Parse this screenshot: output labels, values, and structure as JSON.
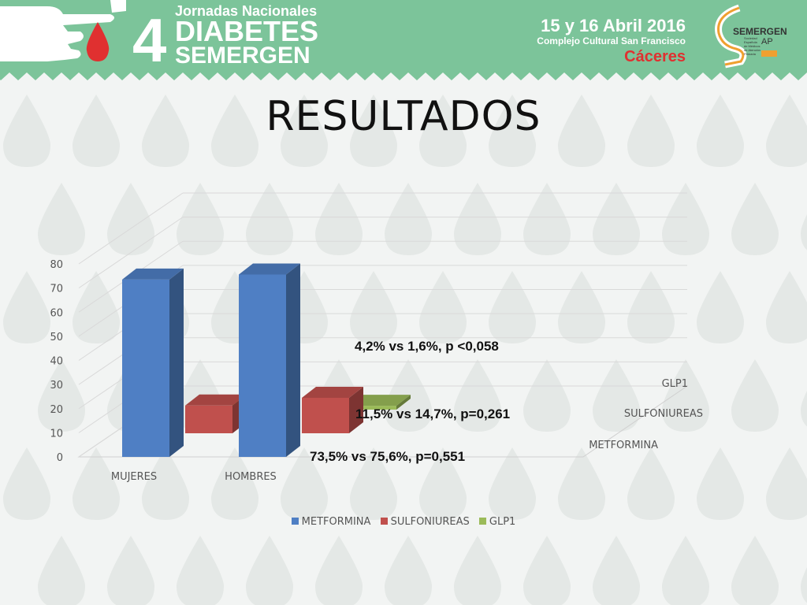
{
  "header": {
    "event_number": "4",
    "event_line1": "Jornadas Nacionales",
    "event_line2": "DIABETES",
    "event_line3": "SEMERGEN",
    "dates": "15 y 16 Abril 2016",
    "venue": "Complejo Cultural San Francisco",
    "city": "Cáceres",
    "logo_text": "SEMERGEN",
    "logo_sub": "AP",
    "logo_small": [
      "Sociedad",
      "Española",
      "de Médicos",
      "de Atención",
      "Primaria"
    ]
  },
  "slide": {
    "title": "RESULTADOS"
  },
  "annotations": {
    "glp1": "4,2% vs 1,6%, p <0,058",
    "sulfonilureas": "11,5% vs 14,7%, p=0,261",
    "metformina": "73,5% vs 75,6%, p=0,551"
  },
  "colors": {
    "banner": "#7cc49a",
    "drop": "#e4e8e6",
    "metformina": "#4f7fc4",
    "sulfoniureas": "#c0504d",
    "glp1": "#9bbb59"
  },
  "chart_data": {
    "type": "bar",
    "categories": [
      "MUJERES",
      "HOMBRES"
    ],
    "series": [
      {
        "name": "METFORMINA",
        "values": [
          73.5,
          75.6
        ]
      },
      {
        "name": "SULFONIUREAS",
        "values": [
          11.5,
          14.7
        ]
      },
      {
        "name": "GLP1",
        "values": [
          4.2,
          1.6
        ]
      }
    ],
    "depth_labels": [
      "GLP1",
      "SULFONIUREAS",
      "METFORMINA"
    ],
    "y_ticks": [
      "0",
      "10",
      "20",
      "30",
      "40",
      "50",
      "60",
      "70",
      "80"
    ],
    "ylim": [
      0,
      80
    ],
    "grid": true,
    "legend": "bottom",
    "three_d": true
  }
}
